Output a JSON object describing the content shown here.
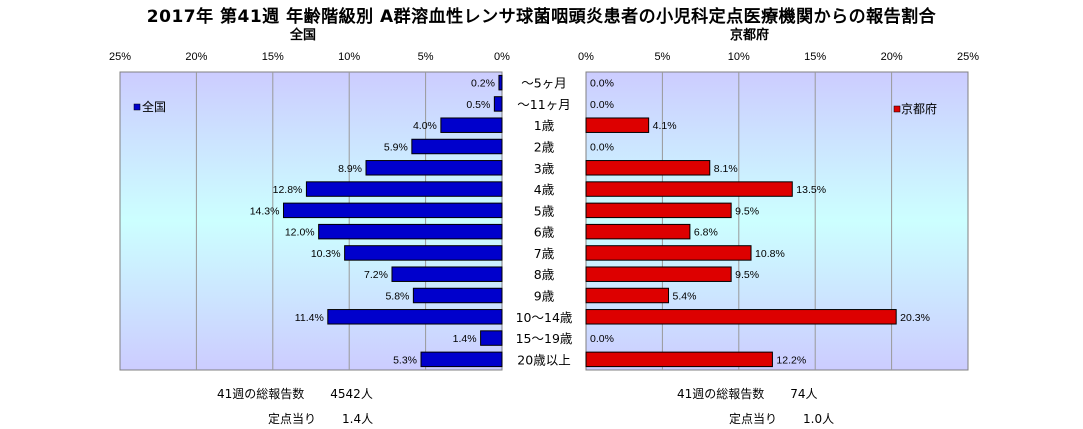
{
  "title": "2017年 第41週 年齢階級別 A群溶血性レンサ球菌咽頭炎患者の小児科定点医療機関からの報告割合",
  "colors": {
    "left_bar": "#0000cc",
    "right_bar": "#dd0000",
    "plot_bg_center": "#ccffff",
    "plot_bg_edge": "#ccccff",
    "gridline": "#999999"
  },
  "chart_data": [
    {
      "type": "bar",
      "orientation": "horizontal",
      "direction": "right-to-left",
      "title": "全国",
      "categories": [
        "～5ヶ月",
        "～11ヶ月",
        "1歳",
        "2歳",
        "3歳",
        "4歳",
        "5歳",
        "6歳",
        "7歳",
        "8歳",
        "9歳",
        "10～14歳",
        "15～19歳",
        "20歳以上"
      ],
      "series": [
        {
          "name": "全国",
          "values": [
            0.2,
            0.5,
            4.0,
            5.9,
            8.9,
            12.8,
            14.3,
            12.0,
            10.3,
            7.2,
            5.8,
            11.4,
            1.4,
            5.3
          ]
        }
      ],
      "data_labels": [
        "0.2%",
        "0.5%",
        "4.0%",
        "5.9%",
        "8.9%",
        "12.8%",
        "14.3%",
        "12.0%",
        "10.3%",
        "7.2%",
        "5.8%",
        "11.4%",
        "1.4%",
        "5.3%"
      ],
      "xlim": [
        0,
        25
      ],
      "xticks": [
        0,
        5,
        10,
        15,
        20,
        25
      ],
      "xtick_labels": [
        "0%",
        "5%",
        "10%",
        "15%",
        "20%",
        "25%"
      ],
      "legend": "top-left",
      "grid": true
    },
    {
      "type": "bar",
      "orientation": "horizontal",
      "direction": "left-to-right",
      "title": "京都府",
      "categories": [
        "～5ヶ月",
        "～11ヶ月",
        "1歳",
        "2歳",
        "3歳",
        "4歳",
        "5歳",
        "6歳",
        "7歳",
        "8歳",
        "9歳",
        "10～14歳",
        "15～19歳",
        "20歳以上"
      ],
      "series": [
        {
          "name": "京都府",
          "values": [
            0.0,
            0.0,
            4.1,
            0.0,
            8.1,
            13.5,
            9.5,
            6.8,
            10.8,
            9.5,
            5.4,
            20.3,
            0.0,
            12.2
          ]
        }
      ],
      "data_labels": [
        "0.0%",
        "0.0%",
        "4.1%",
        "0.0%",
        "8.1%",
        "13.5%",
        "9.5%",
        "6.8%",
        "10.8%",
        "9.5%",
        "5.4%",
        "20.3%",
        "0.0%",
        "12.2%"
      ],
      "xlim": [
        0,
        25
      ],
      "xticks": [
        0,
        5,
        10,
        15,
        20,
        25
      ],
      "xtick_labels": [
        "0%",
        "5%",
        "10%",
        "15%",
        "20%",
        "25%"
      ],
      "legend": "top-right",
      "grid": true
    }
  ],
  "footer": {
    "left_total_label": "41週の総報告数",
    "left_total_value": "4542人",
    "left_per_label": "定点当り",
    "left_per_value": "1.4人",
    "right_total_label": "41週の総報告数",
    "right_total_value": "74人",
    "right_per_label": "定点当り",
    "right_per_value": "1.0人"
  }
}
